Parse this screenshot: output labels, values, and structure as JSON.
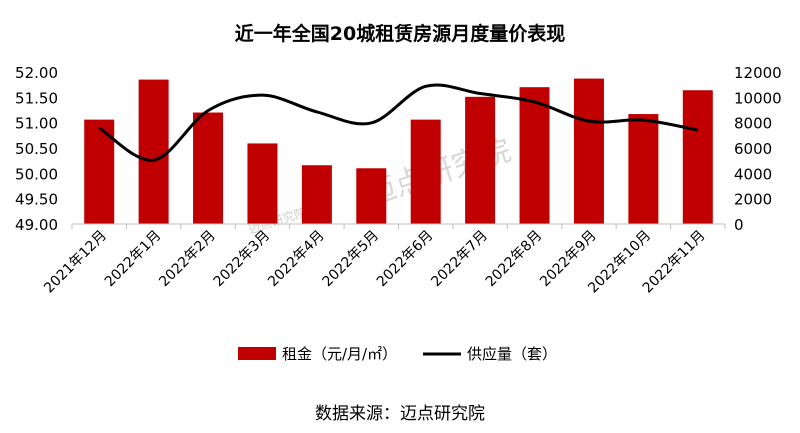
{
  "chart_data": {
    "type": "bar",
    "title": "近一年全国20城租赁房源月度量价表现",
    "categories": [
      "2021年12月",
      "2022年1月",
      "2022年2月",
      "2022年3月",
      "2022年4月",
      "2022年5月",
      "2022年6月",
      "2022年7月",
      "2022年8月",
      "2022年9月",
      "2022年10月",
      "2022年11月"
    ],
    "series": [
      {
        "name": "租金（元/月/㎡）",
        "type": "bar",
        "axis": "left",
        "color": "#C00000",
        "values": [
          51.06,
          51.85,
          51.2,
          50.59,
          50.16,
          50.1,
          51.06,
          51.51,
          51.7,
          51.87,
          51.17,
          51.64
        ]
      },
      {
        "name": "供应量（套）",
        "type": "line",
        "axis": "right",
        "color": "#000000",
        "values": [
          7590,
          5040,
          8950,
          10170,
          8850,
          7980,
          10870,
          10300,
          9640,
          8120,
          8200,
          7410
        ]
      }
    ],
    "y_left": {
      "lim": [
        49,
        52
      ],
      "ticks": [
        "49.00",
        "49.50",
        "50.00",
        "50.50",
        "51.00",
        "51.50",
        "52.00"
      ]
    },
    "y_right": {
      "lim": [
        0,
        12000
      ],
      "ticks": [
        "0",
        "2000",
        "4000",
        "6000",
        "8000",
        "10000",
        "12000"
      ]
    },
    "legend_position": "bottom",
    "source": "数据来源：迈点研究院",
    "watermark": "迈点研究院"
  }
}
